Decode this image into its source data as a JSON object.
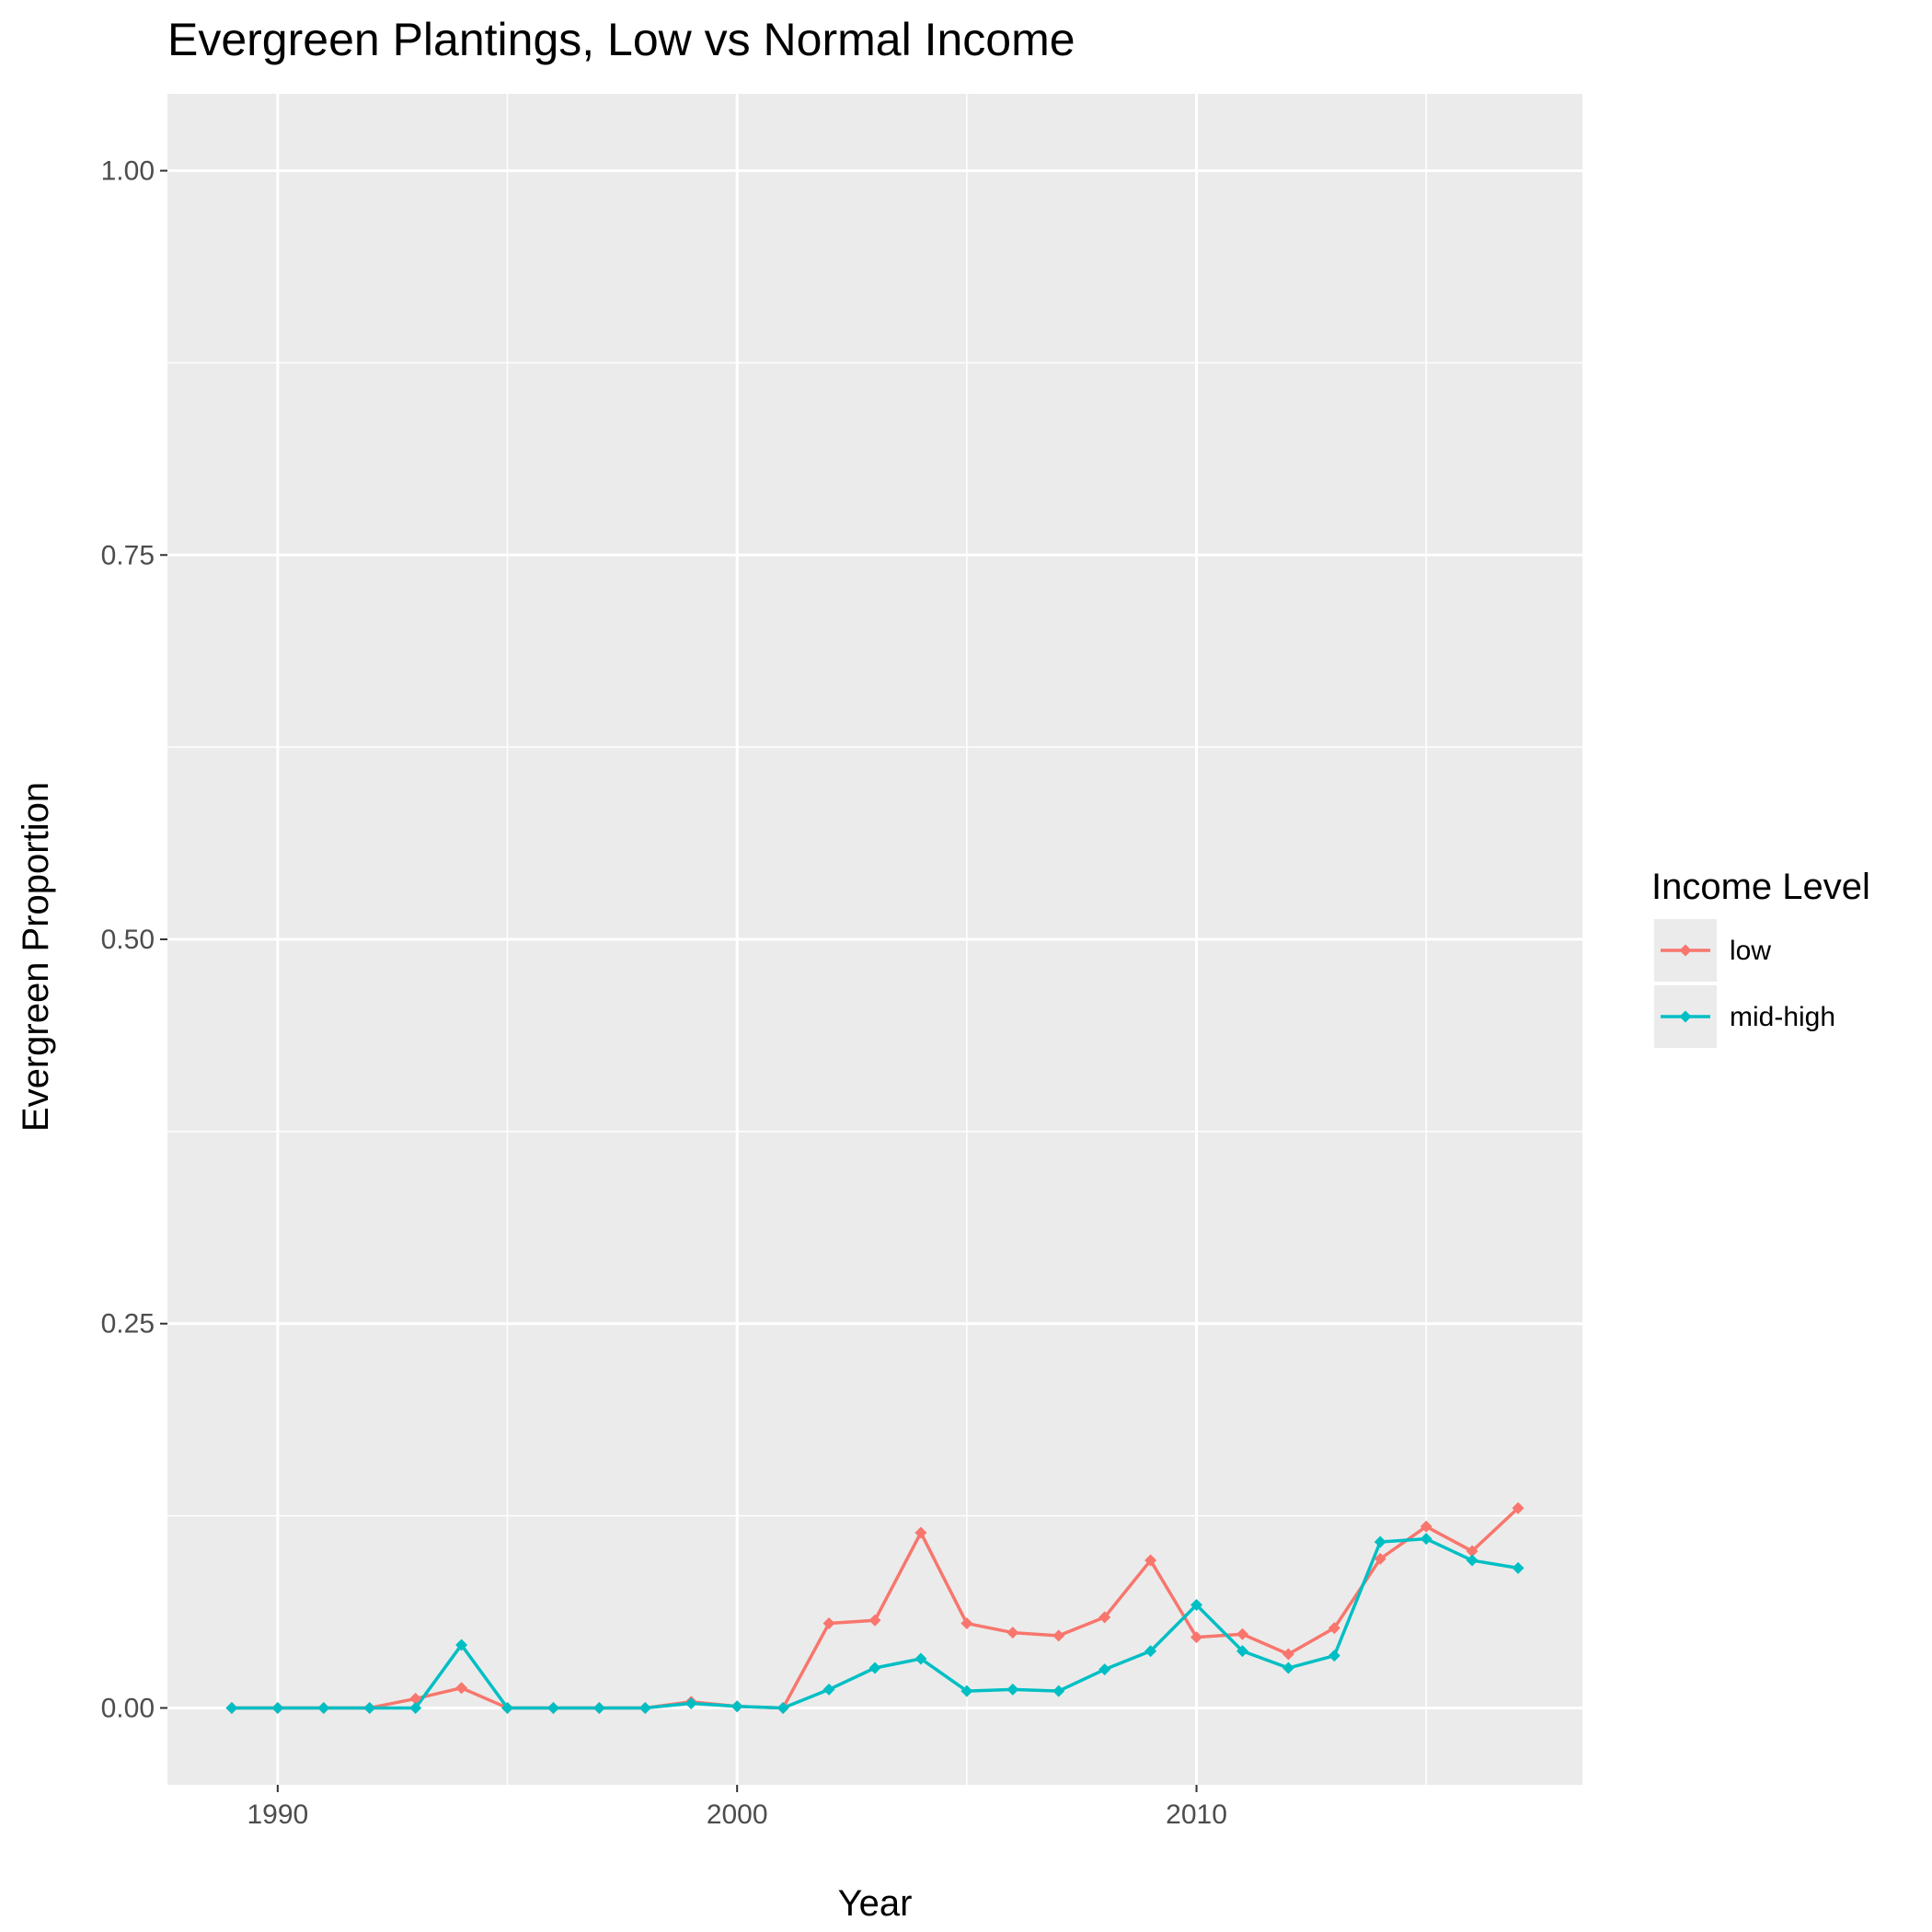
{
  "chart_data": {
    "type": "line",
    "title": "Evergreen Plantings, Low vs Normal Income",
    "xlabel": "Year",
    "ylabel": "Evergreen Proportion",
    "xlim": [
      1987.6,
      2018.4
    ],
    "ylim": [
      -0.05,
      1.05
    ],
    "x_ticks": [
      1990,
      2000,
      2010
    ],
    "x_tick_labels": [
      "1990",
      "2000",
      "2010"
    ],
    "x_minor_ticks": [
      1995,
      2005,
      2015
    ],
    "y_ticks": [
      0,
      0.25,
      0.5,
      0.75,
      1
    ],
    "y_tick_labels": [
      "0.00",
      "0.25",
      "0.50",
      "0.75",
      "1.00"
    ],
    "y_minor_ticks": [
      0.125,
      0.375,
      0.625,
      0.875
    ],
    "grid": true,
    "legend_position": "right",
    "legend_title": "Income Level",
    "x": [
      1989,
      1990,
      1991,
      1992,
      1993,
      1994,
      1995,
      1996,
      1997,
      1998,
      1999,
      2000,
      2001,
      2002,
      2003,
      2004,
      2005,
      2006,
      2007,
      2008,
      2009,
      2010,
      2011,
      2012,
      2013,
      2014,
      2015,
      2016,
      2017
    ],
    "series": [
      {
        "name": "low",
        "color": "#F8766D",
        "values": [
          0,
          0,
          0,
          0,
          0.006,
          0.013,
          0,
          0,
          0,
          0,
          0.004,
          0.001,
          0,
          0.055,
          0.057,
          0.114,
          0.055,
          0.049,
          0.047,
          0.059,
          0.096,
          0.046,
          0.048,
          0.035,
          0.052,
          0.097,
          0.118,
          0.102,
          0.13
        ]
      },
      {
        "name": "mid-high",
        "color": "#00BFC4",
        "values": [
          0,
          0,
          0,
          0,
          0,
          0.041,
          0,
          0,
          0,
          0,
          0.003,
          0.001,
          0,
          0.012,
          0.026,
          0.032,
          0.011,
          0.012,
          0.011,
          0.025,
          0.037,
          0.067,
          0.037,
          0.026,
          0.034,
          0.108,
          0.11,
          0.096,
          0.091
        ]
      }
    ]
  }
}
